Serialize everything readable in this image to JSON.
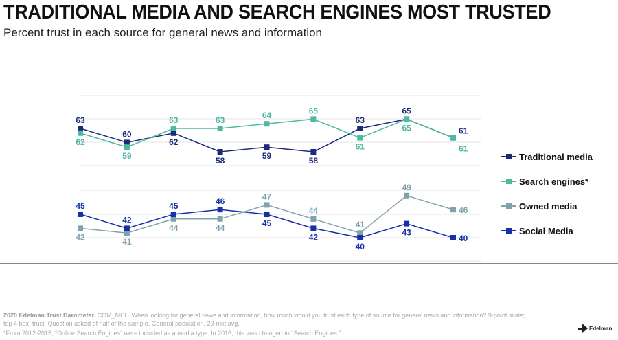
{
  "title": "TRADITIONAL MEDIA AND SEARCH ENGINES MOST TRUSTED",
  "subtitle": "Percent trust in each source for general news and information",
  "chart_data": [
    {
      "type": "line",
      "title": "",
      "xlabel": "",
      "ylabel": "",
      "x_tick_labels_visible": false,
      "points_count": 9,
      "ylim": [
        56,
        67
      ],
      "grid": true,
      "legend": "right",
      "series": [
        {
          "name": "Traditional media",
          "color": "#1b2a7a",
          "values": [
            63,
            60,
            62,
            58,
            59,
            58,
            63,
            65,
            61
          ]
        },
        {
          "name": "Search engines*",
          "color": "#4fb8a0",
          "values": [
            62,
            59,
            63,
            63,
            64,
            65,
            61,
            65,
            61
          ]
        }
      ]
    },
    {
      "type": "line",
      "title": "",
      "xlabel": "",
      "ylabel": "",
      "x_tick_labels_visible": false,
      "points_count": 9,
      "ylim": [
        38,
        50
      ],
      "grid": true,
      "legend": "right",
      "series": [
        {
          "name": "Owned media",
          "color": "#7fa3ad",
          "values": [
            42,
            41,
            44,
            44,
            47,
            44,
            41,
            49,
            46
          ]
        },
        {
          "name": "Social Media",
          "color": "#1530a8",
          "values": [
            45,
            42,
            45,
            46,
            45,
            42,
            40,
            43,
            40
          ]
        }
      ]
    }
  ],
  "legend": [
    {
      "label": "Traditional media",
      "color": "#1b2a7a"
    },
    {
      "label": "Search engines*",
      "color": "#4fb8a0"
    },
    {
      "label": "Owned media",
      "color": "#7fa3ad"
    },
    {
      "label": "Social Media",
      "color": "#1530a8"
    }
  ],
  "footnote": {
    "bold": "2020 Edelman Trust Barometer.",
    "line1": " COM_MCL. When looking for general news and information, how much would you trust each type of source for general news and information? 9-point scale;",
    "line2": "top 4 box, trust. Question asked of half of the sample. General population, 23-mkt avg.",
    "line3": "*From 2012-2015, “Online Search Engines” were included as a media type. In 2016, this was changed to “Search Engines.”"
  },
  "brand": {
    "name": "Edelman"
  }
}
